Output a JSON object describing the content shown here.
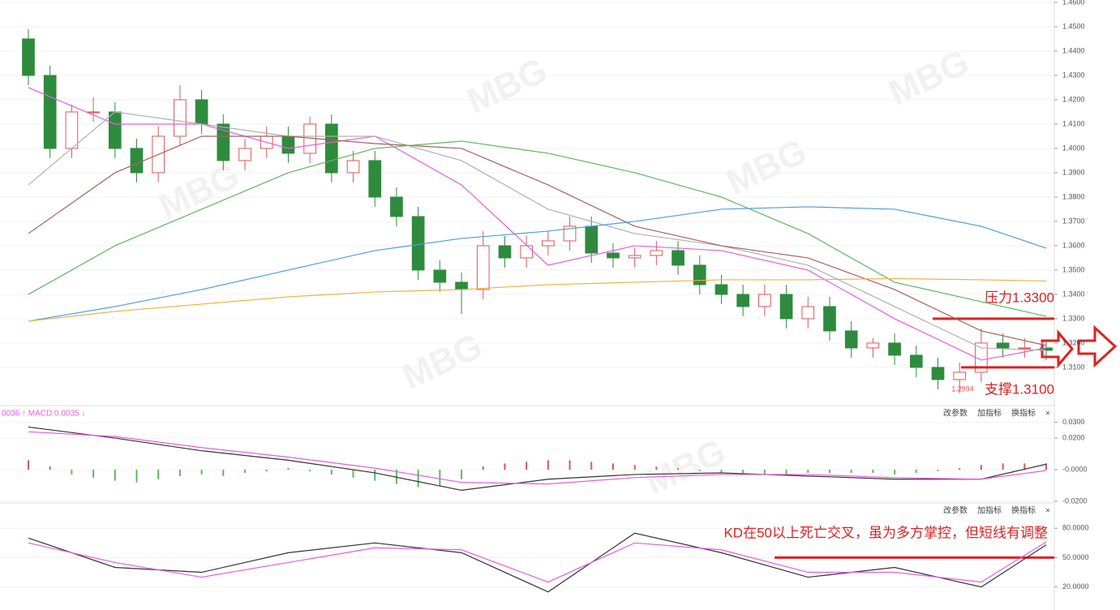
{
  "watermark": "MBG",
  "chart_data": [
    {
      "type": "candlestick",
      "up_color": "#e05555",
      "down_color": "#2e8b3e",
      "open": [
        1.445,
        1.43,
        1.4,
        1.415,
        1.415,
        1.4,
        1.39,
        1.405,
        1.42,
        1.41,
        1.395,
        1.4,
        1.405,
        1.398,
        1.41,
        1.39,
        1.395,
        1.38,
        1.372,
        1.35,
        1.345,
        1.342,
        1.36,
        1.355,
        1.36,
        1.362,
        1.368,
        1.357,
        1.355,
        1.356,
        1.358,
        1.352,
        1.344,
        1.34,
        1.335,
        1.34,
        1.33,
        1.335,
        1.325,
        1.318,
        1.32,
        1.315,
        1.31,
        1.305,
        1.308,
        1.32,
        1.318,
        1.318
      ],
      "high": [
        1.449,
        1.434,
        1.418,
        1.421,
        1.419,
        1.404,
        1.409,
        1.426,
        1.424,
        1.414,
        1.404,
        1.409,
        1.409,
        1.413,
        1.414,
        1.399,
        1.399,
        1.384,
        1.376,
        1.354,
        1.349,
        1.366,
        1.364,
        1.364,
        1.366,
        1.372,
        1.372,
        1.361,
        1.359,
        1.362,
        1.362,
        1.356,
        1.348,
        1.344,
        1.344,
        1.344,
        1.339,
        1.339,
        1.329,
        1.322,
        1.324,
        1.319,
        1.314,
        1.312,
        1.326,
        1.324,
        1.322,
        1.321
      ],
      "low": [
        1.426,
        1.396,
        1.396,
        1.411,
        1.396,
        1.386,
        1.386,
        1.401,
        1.406,
        1.391,
        1.391,
        1.396,
        1.394,
        1.394,
        1.386,
        1.386,
        1.376,
        1.368,
        1.346,
        1.341,
        1.332,
        1.338,
        1.351,
        1.351,
        1.356,
        1.358,
        1.353,
        1.351,
        1.351,
        1.352,
        1.348,
        1.34,
        1.336,
        1.331,
        1.331,
        1.326,
        1.326,
        1.321,
        1.314,
        1.314,
        1.311,
        1.306,
        1.301,
        1.2994,
        1.304,
        1.314,
        1.314,
        1.313
      ],
      "close": [
        1.43,
        1.4,
        1.415,
        1.415,
        1.4,
        1.39,
        1.405,
        1.42,
        1.41,
        1.395,
        1.4,
        1.405,
        1.398,
        1.41,
        1.39,
        1.395,
        1.38,
        1.372,
        1.35,
        1.345,
        1.342,
        1.36,
        1.355,
        1.36,
        1.362,
        1.368,
        1.357,
        1.355,
        1.356,
        1.358,
        1.352,
        1.344,
        1.34,
        1.335,
        1.34,
        1.33,
        1.335,
        1.325,
        1.318,
        1.32,
        1.315,
        1.31,
        1.305,
        1.308,
        1.32,
        1.318,
        1.318,
        1.317
      ],
      "series": [
        {
          "color": "#e85ce0",
          "x": [
            0,
            4,
            8,
            12,
            16,
            20,
            24,
            28,
            32,
            36,
            40,
            44,
            47
          ],
          "values": [
            1.425,
            1.41,
            1.41,
            1.4,
            1.405,
            1.385,
            1.352,
            1.36,
            1.358,
            1.35,
            1.33,
            1.313,
            1.318
          ]
        },
        {
          "color": "#b0b0b0",
          "x": [
            0,
            4,
            8,
            12,
            16,
            20,
            24,
            28,
            32,
            36,
            40,
            44,
            47
          ],
          "values": [
            1.385,
            1.415,
            1.41,
            1.405,
            1.405,
            1.395,
            1.375,
            1.365,
            1.36,
            1.352,
            1.335,
            1.318,
            1.317
          ]
        },
        {
          "color": "#a86060",
          "x": [
            0,
            4,
            8,
            12,
            16,
            20,
            24,
            28,
            32,
            36,
            40,
            44,
            47
          ],
          "values": [
            1.365,
            1.39,
            1.405,
            1.405,
            1.402,
            1.4,
            1.385,
            1.368,
            1.36,
            1.355,
            1.342,
            1.325,
            1.319
          ]
        },
        {
          "color": "#5cb85c",
          "x": [
            0,
            4,
            8,
            12,
            16,
            20,
            24,
            28,
            32,
            36,
            40,
            44,
            47
          ],
          "values": [
            1.34,
            1.36,
            1.375,
            1.39,
            1.4,
            1.403,
            1.398,
            1.39,
            1.38,
            1.365,
            1.345,
            1.337,
            1.331
          ]
        },
        {
          "color": "#4a9ee0",
          "x": [
            0,
            4,
            8,
            12,
            16,
            20,
            24,
            28,
            32,
            36,
            40,
            44,
            47
          ],
          "values": [
            1.329,
            1.335,
            1.342,
            1.35,
            1.358,
            1.363,
            1.366,
            1.37,
            1.375,
            1.376,
            1.375,
            1.368,
            1.359
          ]
        },
        {
          "color": "#f0b040",
          "x": [
            0,
            4,
            8,
            12,
            16,
            20,
            24,
            28,
            32,
            36,
            40,
            44,
            47
          ],
          "values": [
            1.329,
            1.333,
            1.336,
            1.339,
            1.341,
            1.342,
            1.344,
            1.345,
            1.346,
            1.346,
            1.3465,
            1.346,
            1.3455
          ]
        }
      ],
      "ylim": [
        1.2943,
        1.461
      ],
      "yticks": [
        {
          "value": 1.31,
          "label": "1.3100"
        },
        {
          "value": 1.32,
          "label": "1.3200"
        },
        {
          "value": 1.33,
          "label": "1.3300"
        },
        {
          "value": 1.34,
          "label": "1.3400"
        },
        {
          "value": 1.35,
          "label": "1.3500"
        },
        {
          "value": 1.36,
          "label": "1.3600"
        },
        {
          "value": 1.37,
          "label": "1.3700"
        },
        {
          "value": 1.38,
          "label": "1.3800"
        },
        {
          "value": 1.39,
          "label": "1.3900"
        },
        {
          "value": 1.4,
          "label": "1.4000"
        },
        {
          "value": 1.41,
          "label": "1.4100"
        },
        {
          "value": 1.42,
          "label": "1.4200"
        },
        {
          "value": 1.43,
          "label": "1.4300"
        },
        {
          "value": 1.44,
          "label": "1.4400"
        },
        {
          "value": 1.45,
          "label": "1.4500"
        },
        {
          "value": 1.46,
          "label": "1.4600"
        }
      ],
      "annotations": [
        {
          "text": "压力1.3300",
          "value": 1.33
        },
        {
          "text": "支撑1.3100",
          "value": 1.31
        }
      ],
      "low_label": "1.2994"
    },
    {
      "type": "bar",
      "title": "0036 ↑ MACD:0.0035 ↓",
      "toolbar": [
        "改参数",
        "加指标",
        "换指标",
        "×"
      ],
      "up_color": "#e05555",
      "down_color": "#5cb85c",
      "values": [
        0.006,
        0.002,
        -0.003,
        -0.005,
        -0.007,
        -0.008,
        -0.006,
        -0.004,
        -0.003,
        -0.004,
        -0.002,
        -0.001,
        0.001,
        -0.001,
        -0.003,
        -0.005,
        -0.007,
        -0.009,
        -0.011,
        -0.01,
        -0.006,
        0.002,
        0.004,
        0.005,
        0.006,
        0.006,
        0.005,
        0.004,
        0.003,
        0.002,
        0.001,
        -0.001,
        -0.002,
        -0.002,
        -0.003,
        -0.003,
        -0.002,
        -0.002,
        -0.002,
        -0.002,
        -0.003,
        -0.002,
        -0.001,
        0.001,
        0.003,
        0.004,
        0.004,
        0.004
      ],
      "series": [
        {
          "color": "#333333",
          "x": [
            0,
            4,
            8,
            12,
            16,
            20,
            24,
            28,
            32,
            36,
            40,
            44,
            47
          ],
          "values": [
            0.027,
            0.02,
            0.012,
            0.006,
            -0.002,
            -0.013,
            -0.006,
            -0.003,
            -0.002,
            -0.004,
            -0.006,
            -0.006,
            0.0035
          ]
        },
        {
          "color": "#e85ce0",
          "x": [
            0,
            4,
            8,
            12,
            16,
            20,
            24,
            28,
            32,
            36,
            40,
            44,
            47
          ],
          "values": [
            0.024,
            0.021,
            0.014,
            0.008,
            0.001,
            -0.008,
            -0.009,
            -0.005,
            -0.003,
            -0.003,
            -0.005,
            -0.006,
            -0.0005
          ]
        }
      ],
      "ylim": [
        -0.021,
        0.038
      ],
      "yticks": [
        {
          "value": 0.03,
          "label": "0.0300"
        },
        {
          "value": 0.02,
          "label": "0.0200"
        },
        {
          "value": 0,
          "label": "-0.0000"
        },
        {
          "value": -0.02,
          "label": "-0.0200"
        }
      ]
    },
    {
      "type": "line",
      "toolbar": [
        "改参数",
        "加指标",
        "换指标",
        "×"
      ],
      "series": [
        {
          "color": "#333333",
          "x": [
            0,
            4,
            8,
            12,
            16,
            20,
            24,
            28,
            32,
            36,
            40,
            44,
            47
          ],
          "values": [
            70,
            40,
            35,
            55,
            65,
            55,
            15,
            75,
            55,
            30,
            40,
            20,
            63
          ]
        },
        {
          "color": "#e85ce0",
          "x": [
            0,
            4,
            8,
            12,
            16,
            20,
            24,
            28,
            32,
            36,
            40,
            44,
            47
          ],
          "values": [
            65,
            45,
            30,
            45,
            60,
            58,
            25,
            65,
            58,
            35,
            35,
            25,
            66
          ]
        }
      ],
      "ylim": [
        -3.5,
        104.2
      ],
      "yticks": [
        {
          "value": 80,
          "label": "80.0000"
        },
        {
          "value": 50,
          "label": "50.0000"
        },
        {
          "value": 20,
          "label": "20.0000"
        }
      ],
      "annotations": [
        {
          "text": "KD在50以上死亡交叉，虽为多方掌控，但短线有调整",
          "value": 50
        }
      ]
    }
  ]
}
